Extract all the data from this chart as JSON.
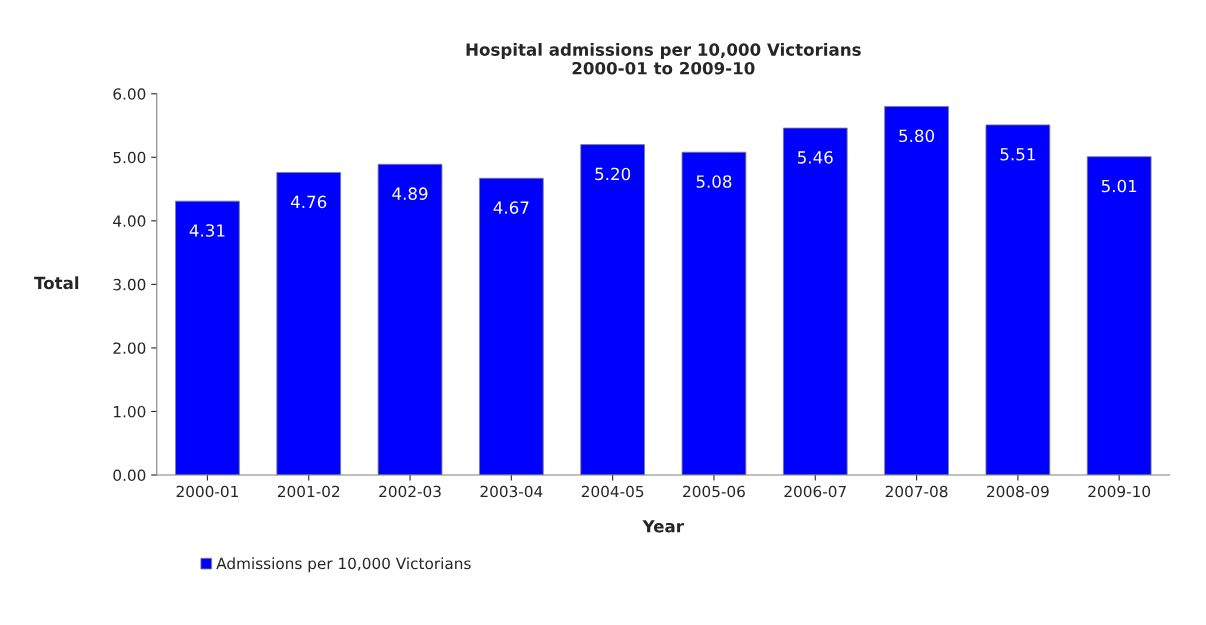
{
  "chart_data": {
    "type": "bar",
    "title": "Hospital admissions per 10,000 Victorians\n2000-01 to 2009-10",
    "xlabel": "Year",
    "ylabel": "Total",
    "categories": [
      "2000-01",
      "2001-02",
      "2002-03",
      "2003-04",
      "2004-05",
      "2005-06",
      "2006-07",
      "2007-08",
      "2008-09",
      "2009-10"
    ],
    "series": [
      {
        "name": "Admissions per 10,000 Victorians",
        "color": "#0000ff",
        "values": [
          4.31,
          4.76,
          4.89,
          4.67,
          5.2,
          5.08,
          5.46,
          5.8,
          5.51,
          5.01
        ],
        "value_labels": [
          "4.31",
          "4.76",
          "4.89",
          "4.67",
          "5.20",
          "5.08",
          "5.46",
          "5.80",
          "5.51",
          "5.01"
        ]
      }
    ],
    "ylim": [
      0,
      6
    ],
    "yticks": [
      {
        "value": 0,
        "label": "0.00"
      },
      {
        "value": 1,
        "label": "1.00"
      },
      {
        "value": 2,
        "label": "2.00"
      },
      {
        "value": 3,
        "label": "3.00"
      },
      {
        "value": 4,
        "label": "4.00"
      },
      {
        "value": 5,
        "label": "5.00"
      },
      {
        "value": 6,
        "label": "6.00"
      }
    ],
    "grid": false,
    "legend": "bottom left"
  }
}
